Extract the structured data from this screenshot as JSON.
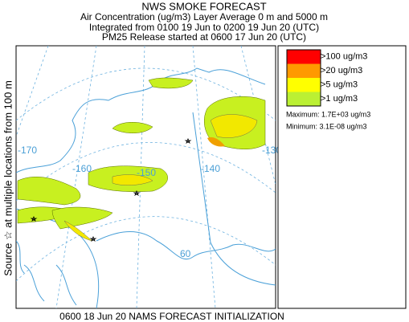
{
  "header": {
    "title": "NWS SMOKE FORECAST",
    "lines": [
      "Air Concentration (ug/m3) Layer Average    0 m and  5000 m",
      "Integrated from 0100 19 Jun to 0200 19 Jun 20 (UTC)",
      "PM25 Release started at 0600 17 Jun 20 (UTC)"
    ]
  },
  "side_label": "Source ☆ at multiple locations  from   100 m",
  "map": {
    "labels": [
      "-170",
      "-160",
      "-150",
      "-140",
      "-130",
      "60"
    ]
  },
  "legend": {
    "entries": [
      {
        "label": ">100 ug/m3",
        "color": "#ff0000"
      },
      {
        "label": ">20 ug/m3",
        "color": "#ff9900"
      },
      {
        "label": ">5 ug/m3",
        "color": "#ffff00"
      },
      {
        "label": ">1 ug/m3",
        "color": "#bbf033"
      }
    ],
    "maximum": "Maximum: 1.7E+03 ug/m3",
    "minimum": "Minimum: 3.1E-08 ug/m3"
  },
  "footer": "0600 18 Jun 20 NAMS FORECAST INITIALIZATION"
}
